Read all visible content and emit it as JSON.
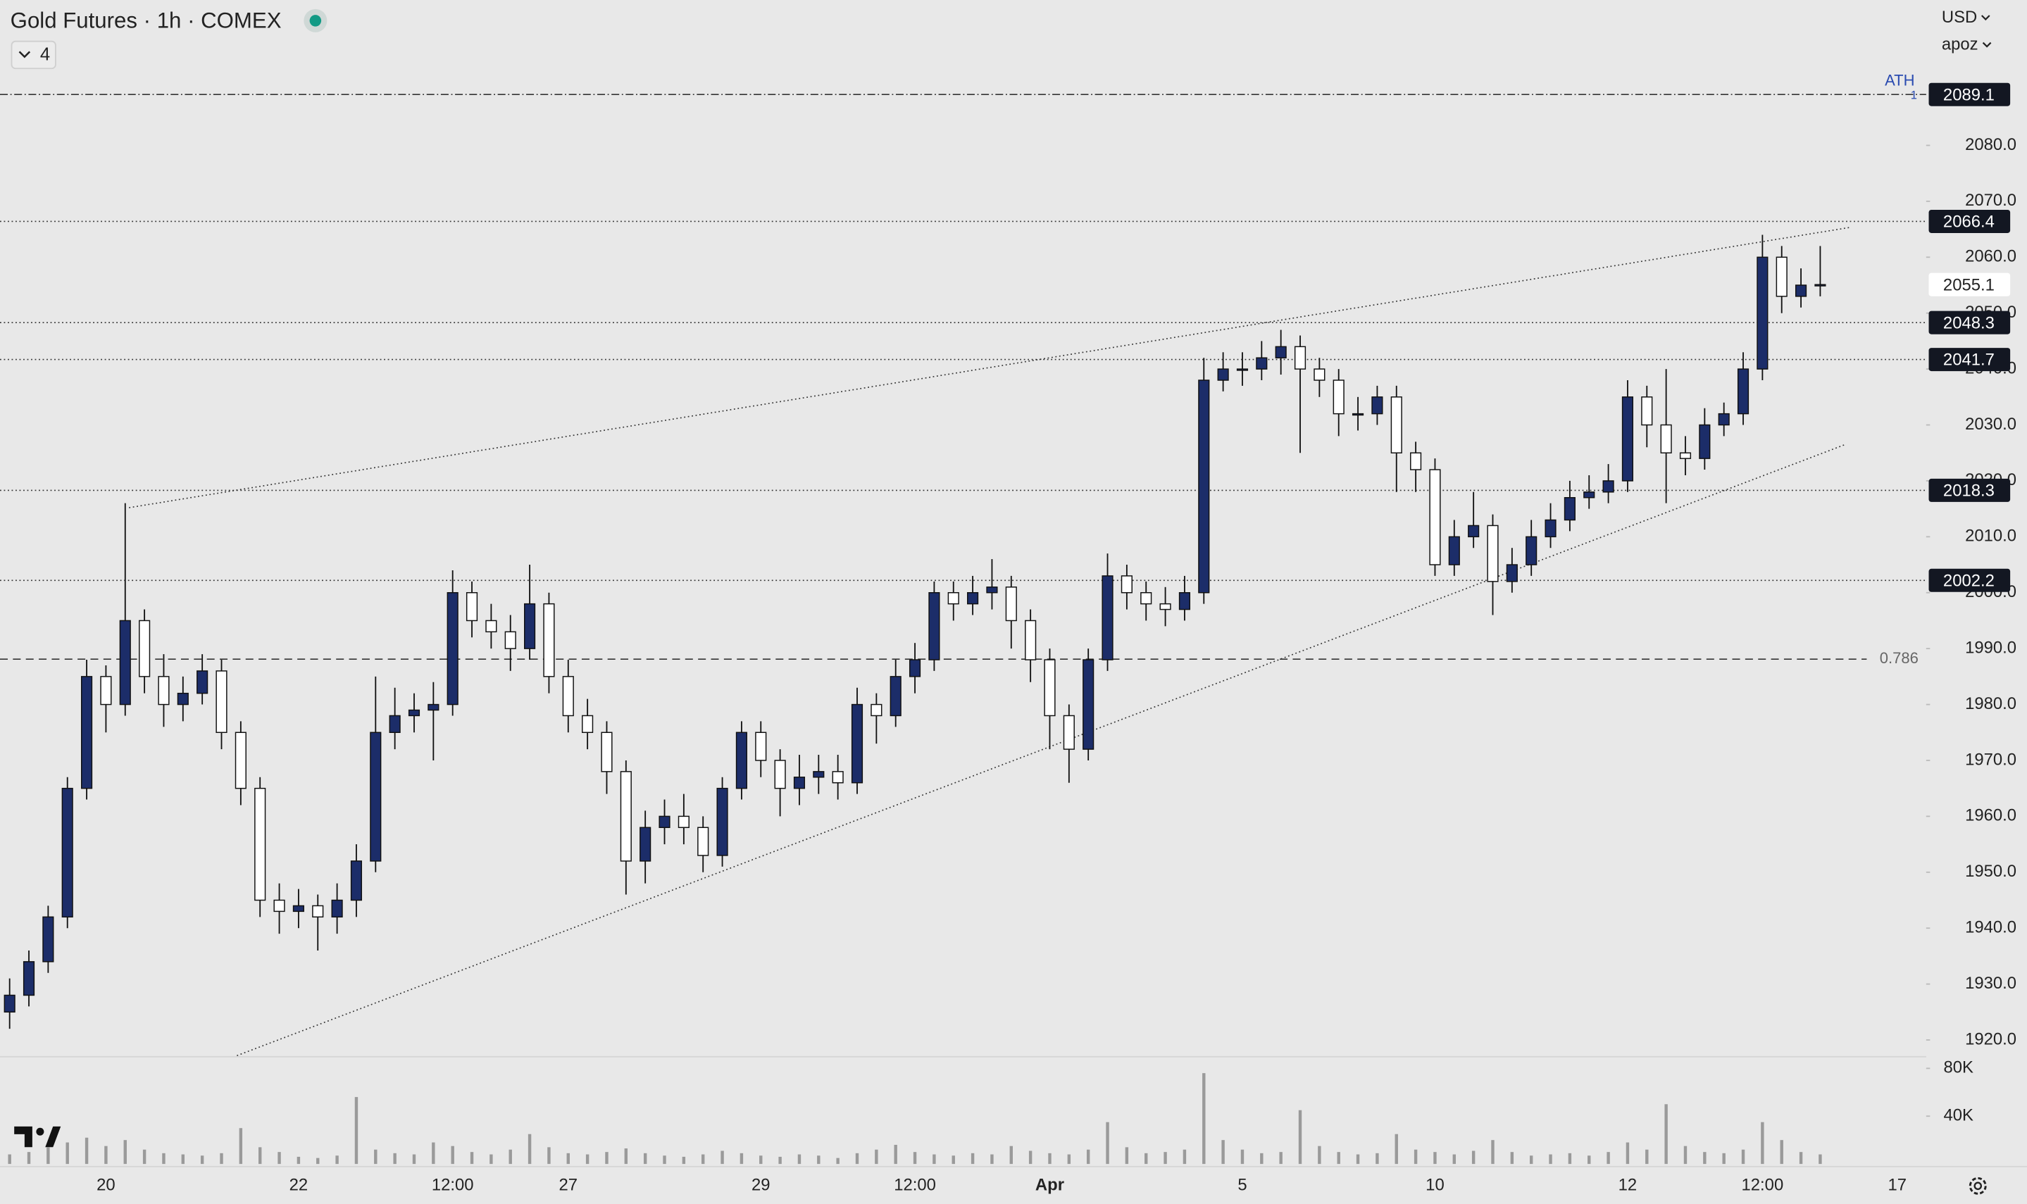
{
  "chart_data": {
    "type": "candlestick",
    "title": "Gold Futures · 1h · COMEX",
    "indicator_count": 4,
    "currency": "USD",
    "account": "apoz",
    "categories": [
      null,
      null,
      null,
      null,
      null,
      "20",
      null,
      null,
      null,
      null,
      null,
      null,
      null,
      null,
      null,
      "22",
      null,
      null,
      null,
      null,
      null,
      null,
      null,
      "12:00",
      null,
      null,
      null,
      null,
      null,
      "27",
      null,
      null,
      null,
      null,
      null,
      null,
      null,
      null,
      null,
      "29",
      null,
      null,
      null,
      null,
      null,
      null,
      null,
      "12:00",
      null,
      null,
      null,
      null,
      null,
      null,
      "Apr",
      null,
      null,
      null,
      null,
      null,
      null,
      null,
      null,
      null,
      "5",
      null,
      null,
      null,
      null,
      null,
      null,
      null,
      null,
      null,
      "10",
      null,
      null,
      null,
      null,
      null,
      null,
      null,
      null,
      null,
      "12",
      null,
      null,
      null,
      null,
      null,
      null,
      "12:00",
      null,
      null,
      null,
      null,
      null,
      null,
      "17",
      null
    ],
    "open": [
      1925,
      1928,
      1934,
      1942,
      1965,
      1985,
      1980,
      1995,
      1985,
      1980,
      1982,
      1986,
      1975,
      1965,
      1945,
      1943,
      1944,
      1942,
      1945,
      1952,
      1975,
      1978,
      1979,
      1980,
      2000,
      1995,
      1993,
      1990,
      1998,
      1985,
      1978,
      1975,
      1968,
      1952,
      1958,
      1960,
      1958,
      1953,
      1965,
      1975,
      1970,
      1965,
      1967,
      1968,
      1966,
      1980,
      1978,
      1985,
      1988,
      2000,
      1998,
      2000,
      2001,
      1995,
      1988,
      1978,
      1972,
      1988,
      2003,
      2000,
      1998,
      1997,
      2000,
      2038,
      2040,
      2040,
      2042,
      2044,
      2040,
      2038,
      2032,
      2032,
      2035,
      2025,
      2022,
      2005,
      2010,
      2012,
      2002,
      2005,
      2010,
      2013,
      2017,
      2018,
      2020,
      2035,
      2030,
      2025,
      2024,
      2030,
      2032,
      2040,
      2060,
      2053,
      2055,
      null,
      null,
      null,
      null,
      null
    ],
    "high": [
      1931,
      1936,
      1944,
      1967,
      1988,
      1987,
      2016,
      1997,
      1989,
      1985,
      1989,
      1988,
      1977,
      1967,
      1948,
      1947,
      1946,
      1948,
      1955,
      1985,
      1983,
      1982,
      1984,
      2004,
      2002,
      1998,
      1996,
      2005,
      2000,
      1988,
      1981,
      1977,
      1970,
      1961,
      1963,
      1964,
      1960,
      1967,
      1977,
      1977,
      1972,
      1971,
      1971,
      1971,
      1983,
      1982,
      1988,
      1991,
      2002,
      2002,
      2003,
      2006,
      2003,
      1997,
      1990,
      1980,
      1990,
      2007,
      2005,
      2002,
      2001,
      2003,
      2042,
      2043,
      2043,
      2045,
      2047,
      2046,
      2042,
      2040,
      2035,
      2037,
      2037,
      2027,
      2024,
      2013,
      2018,
      2014,
      2008,
      2013,
      2016,
      2020,
      2021,
      2023,
      2038,
      2037,
      2040,
      2028,
      2033,
      2034,
      2043,
      2064,
      2062,
      2058,
      2062,
      null,
      null,
      null,
      null,
      null
    ],
    "low": [
      1922,
      1926,
      1932,
      1940,
      1963,
      1975,
      1978,
      1982,
      1976,
      1977,
      1980,
      1972,
      1962,
      1942,
      1939,
      1940,
      1936,
      1939,
      1942,
      1950,
      1972,
      1975,
      1970,
      1978,
      1992,
      1990,
      1986,
      1988,
      1982,
      1975,
      1972,
      1964,
      1946,
      1948,
      1955,
      1955,
      1950,
      1951,
      1963,
      1967,
      1960,
      1962,
      1964,
      1963,
      1964,
      1973,
      1976,
      1982,
      1986,
      1995,
      1996,
      1997,
      1990,
      1984,
      1972,
      1966,
      1970,
      1986,
      1997,
      1995,
      1994,
      1995,
      1998,
      2036,
      2037,
      2038,
      2039,
      2025,
      2035,
      2028,
      2029,
      2030,
      2018,
      2018,
      2003,
      2003,
      2008,
      1996,
      2000,
      2003,
      2008,
      2011,
      2015,
      2016,
      2018,
      2026,
      2016,
      2021,
      2022,
      2028,
      2030,
      2038,
      2050,
      2051,
      2053,
      null,
      null,
      null,
      null,
      null
    ],
    "close": [
      1928,
      1934,
      1942,
      1965,
      1985,
      1980,
      1995,
      1985,
      1980,
      1982,
      1986,
      1975,
      1965,
      1945,
      1943,
      1944,
      1942,
      1945,
      1952,
      1975,
      1978,
      1979,
      1980,
      2000,
      1995,
      1993,
      1990,
      1998,
      1985,
      1978,
      1975,
      1968,
      1952,
      1958,
      1960,
      1958,
      1953,
      1965,
      1975,
      1970,
      1965,
      1967,
      1968,
      1966,
      1980,
      1978,
      1985,
      1988,
      2000,
      1998,
      2000,
      2001,
      1995,
      1988,
      1978,
      1972,
      1988,
      2003,
      2000,
      1998,
      1997,
      2000,
      2038,
      2040,
      2040,
      2042,
      2044,
      2040,
      2038,
      2032,
      2032,
      2035,
      2025,
      2022,
      2005,
      2010,
      2012,
      2002,
      2005,
      2010,
      2013,
      2017,
      2018,
      2020,
      2035,
      2030,
      2025,
      2024,
      2030,
      2032,
      2040,
      2060,
      2053,
      2055,
      2055.1,
      null,
      null,
      null,
      null,
      null
    ],
    "volume": [
      8000,
      10000,
      14000,
      18000,
      22000,
      15000,
      20000,
      12000,
      9000,
      8000,
      7000,
      9000,
      30000,
      14000,
      10000,
      6000,
      5000,
      7000,
      56000,
      12000,
      9000,
      8000,
      18000,
      15000,
      10000,
      8000,
      12000,
      25000,
      14000,
      9000,
      8000,
      10000,
      13000,
      9000,
      7000,
      6000,
      8000,
      11000,
      9000,
      7000,
      6000,
      8000,
      7000,
      5000,
      9000,
      12000,
      16000,
      10000,
      8000,
      7000,
      9000,
      8000,
      15000,
      11000,
      9000,
      8000,
      12000,
      35000,
      14000,
      9000,
      10000,
      12000,
      76000,
      20000,
      12000,
      9000,
      10000,
      45000,
      15000,
      10000,
      8000,
      9000,
      25000,
      12000,
      10000,
      8000,
      11000,
      20000,
      10000,
      7000,
      8000,
      9000,
      7000,
      10000,
      18000,
      12000,
      50000,
      15000,
      10000,
      9000,
      12000,
      35000,
      20000,
      10000,
      8000,
      null,
      null,
      null,
      null,
      null
    ],
    "up_color": "#1c2d69",
    "down_color": "#ffffff",
    "wick_color": "#111111",
    "volume_color": "#9a9a9a",
    "ylim": [
      1917,
      2106
    ],
    "yticks": [
      {
        "value": 1920,
        "label": "1920.0"
      },
      {
        "value": 1930,
        "label": "1930.0"
      },
      {
        "value": 1940,
        "label": "1940.0"
      },
      {
        "value": 1950,
        "label": "1950.0"
      },
      {
        "value": 1960,
        "label": "1960.0"
      },
      {
        "value": 1970,
        "label": "1970.0"
      },
      {
        "value": 1980,
        "label": "1980.0"
      },
      {
        "value": 1990,
        "label": "1990.0"
      },
      {
        "value": 2000,
        "label": "2000.0"
      },
      {
        "value": 2010,
        "label": "2010.0"
      },
      {
        "value": 2020,
        "label": "2020.0"
      },
      {
        "value": 2030,
        "label": "2030.0"
      },
      {
        "value": 2040,
        "label": "2040.0"
      },
      {
        "value": 2050,
        "label": "2050.0"
      },
      {
        "value": 2060,
        "label": "2060.0"
      },
      {
        "value": 2070,
        "label": "2070.0"
      },
      {
        "value": 2080,
        "label": "2080.0"
      }
    ],
    "volume_ylim": [
      0,
      80000
    ],
    "volume_yticks": [
      {
        "value": 40000,
        "label": "40K"
      },
      {
        "value": 80000,
        "label": "80K"
      }
    ],
    "levels": [
      {
        "value": 2089.1,
        "label": "ATH",
        "sublabel": "1",
        "style": "dash-dot"
      },
      {
        "value": 2066.4,
        "style": "dotted"
      },
      {
        "value": 2048.3,
        "style": "dotted"
      },
      {
        "value": 2041.7,
        "style": "dotted"
      },
      {
        "value": 2018.3,
        "style": "dotted"
      },
      {
        "value": 2002.2,
        "style": "dotted"
      },
      {
        "value": 1988.1,
        "label": "0.786",
        "style": "dashed"
      }
    ],
    "trendlines": [
      {
        "x": [
          6.2,
          95.5
        ],
        "y": [
          2015.2,
          2065.3
        ]
      },
      {
        "x": [
          11.8,
          95.3
        ],
        "y": [
          1917.2,
          2026.5
        ]
      }
    ],
    "grid": false
  }
}
